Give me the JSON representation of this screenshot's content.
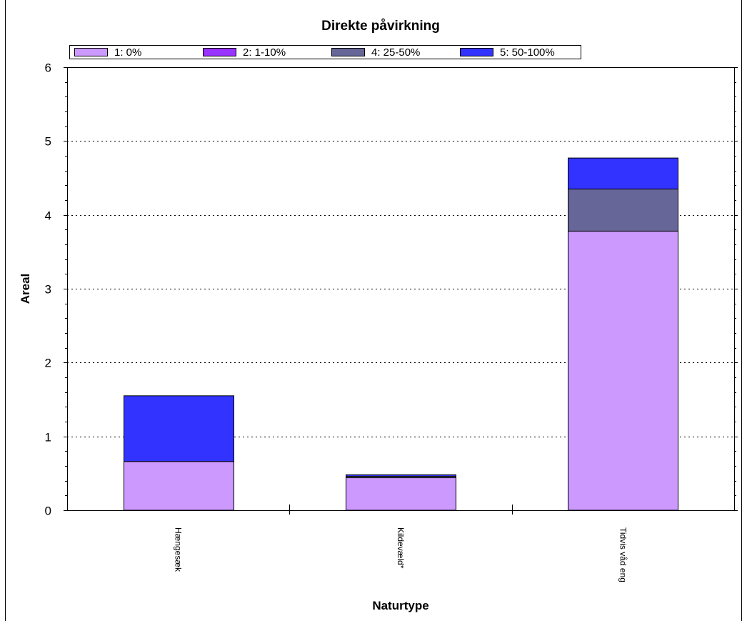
{
  "chart_data": {
    "type": "bar",
    "stacked": true,
    "title": "Direkte påvirkning",
    "xlabel": "Naturtype",
    "ylabel": "Areal",
    "ylim": [
      0,
      6
    ],
    "yticks": [
      "0",
      "1",
      "2",
      "3",
      "4",
      "5",
      "6"
    ],
    "categories": [
      "Hængesæk",
      "Kildevæld*",
      "Tidvis våd eng"
    ],
    "series": [
      {
        "name": "1: 0%",
        "color": "#cc99ff",
        "values": [
          0.66,
          0.44,
          3.78
        ]
      },
      {
        "name": "2: 1-10%",
        "color": "#9933ff",
        "values": [
          0,
          0,
          0
        ]
      },
      {
        "name": "4: 25-50%",
        "color": "#666699",
        "values": [
          0,
          0.02,
          0.57
        ]
      },
      {
        "name": "5: 50-100%",
        "color": "#3333ff",
        "values": [
          0.89,
          0.02,
          0.42
        ]
      }
    ],
    "grid": "horizontal-dotted",
    "legend_position": "top"
  }
}
